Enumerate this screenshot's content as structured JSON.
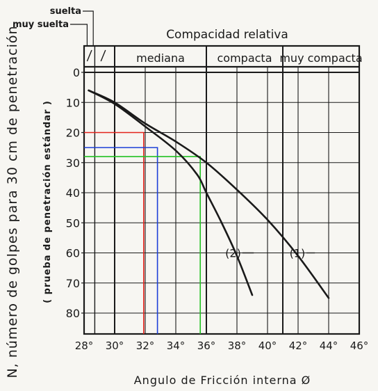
{
  "chart_data": {
    "type": "line",
    "title": "Compacidad relativa",
    "xlabel": "Angulo de Fricción interna  Ø",
    "ylabel": "N, número de golpes para 30 cm de penetración",
    "ylabel_sub": "( prueba de penetración estándar )",
    "xlim": [
      28,
      46
    ],
    "ylim": [
      0,
      85
    ],
    "x_inverted": false,
    "y_inverted": true,
    "grid": true,
    "x_ticks": [
      28,
      30,
      32,
      34,
      36,
      38,
      40,
      42,
      44,
      46
    ],
    "x_tick_labels": [
      "28°",
      "30°",
      "32°",
      "34°",
      "36°",
      "38°",
      "40°",
      "42°",
      "44°",
      "46°"
    ],
    "y_ticks": [
      0,
      10,
      20,
      30,
      40,
      50,
      60,
      70,
      80
    ],
    "y_tick_labels": [
      "0",
      "10",
      "20",
      "30",
      "40",
      "50",
      "60",
      "70",
      "80"
    ],
    "compaction_bands": [
      {
        "label": "",
        "from": 28,
        "to": 28.7
      },
      {
        "label": "",
        "from": 28.7,
        "to": 30
      },
      {
        "label": "mediana",
        "from": 30,
        "to": 36
      },
      {
        "label": "compacta",
        "from": 36,
        "to": 41
      },
      {
        "label": "muy compacta",
        "from": 41,
        "to": 46
      }
    ],
    "band_callouts": [
      "suelta",
      "muy suelta"
    ],
    "series": [
      {
        "name": "(1)",
        "color": "#1a1a1a",
        "x": [
          28.3,
          30,
          32,
          34,
          36,
          38,
          40,
          42,
          44
        ],
        "y": [
          6,
          10,
          17,
          23,
          30,
          39,
          49,
          61,
          75
        ]
      },
      {
        "name": "(2)",
        "color": "#1a1a1a",
        "x": [
          28.3,
          30,
          32,
          34,
          35.4,
          36,
          37,
          38,
          39
        ],
        "y": [
          6,
          10.5,
          18,
          26,
          34,
          40,
          50,
          61,
          74
        ]
      }
    ],
    "reference_lines": [
      {
        "color": "#e3231c",
        "N": 20,
        "phi": 31.9
      },
      {
        "color": "#1d3fd8",
        "N": 25,
        "phi": 32.8
      },
      {
        "color": "#22c222",
        "N": 28,
        "phi": 35.6
      }
    ]
  }
}
